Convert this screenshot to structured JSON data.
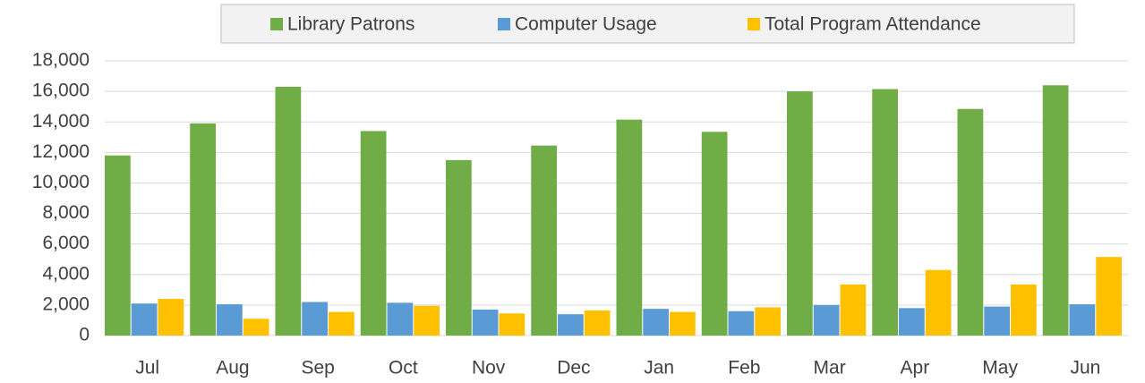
{
  "chart_data": {
    "type": "bar",
    "categories": [
      "Jul",
      "Aug",
      "Sep",
      "Oct",
      "Nov",
      "Dec",
      "Jan",
      "Feb",
      "Mar",
      "Apr",
      "May",
      "Jun"
    ],
    "series": [
      {
        "name": "Library Patrons",
        "color": "#70ad47",
        "values": [
          11800,
          13900,
          16300,
          13400,
          11500,
          12450,
          14150,
          13350,
          16000,
          16150,
          14850,
          16400
        ]
      },
      {
        "name": "Computer Usage",
        "color": "#5b9bd5",
        "values": [
          2100,
          2050,
          2200,
          2150,
          1700,
          1400,
          1750,
          1600,
          2000,
          1800,
          1900,
          2050
        ]
      },
      {
        "name": "Total Program Attendance",
        "color": "#ffc000",
        "values": [
          2400,
          1100,
          1550,
          1950,
          1450,
          1650,
          1550,
          1850,
          3350,
          4300,
          3350,
          5150
        ]
      }
    ],
    "ylim": [
      0,
      18000
    ],
    "yticks": [
      0,
      {
        "value": 2000,
        "label": "2,000"
      },
      {
        "value": 4000,
        "label": "4,000"
      },
      {
        "value": 6000,
        "label": "6,000"
      },
      {
        "value": 8000,
        "label": "8,000"
      },
      {
        "value": 10000,
        "label": "10,000"
      },
      {
        "value": 12000,
        "label": "12,000"
      },
      {
        "value": 14000,
        "label": "14,000"
      },
      {
        "value": 16000,
        "label": "16,000"
      },
      {
        "value": 18000,
        "label": "18,000"
      }
    ],
    "grid": true,
    "legend": "top"
  }
}
